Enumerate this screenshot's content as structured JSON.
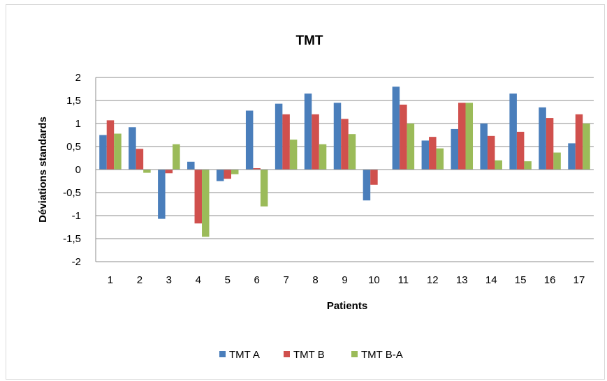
{
  "chart_data": {
    "type": "bar",
    "title": "TMT",
    "xlabel": "Patients",
    "ylabel": "Déviations standards",
    "ylim": [
      -2,
      2
    ],
    "yticks": [
      "2",
      "1,5",
      "1",
      "0,5",
      "0",
      "-0,5",
      "-1",
      "-1,5",
      "-2"
    ],
    "categories": [
      "1",
      "2",
      "3",
      "4",
      "5",
      "6",
      "7",
      "8",
      "9",
      "10",
      "11",
      "12",
      "13",
      "14",
      "15",
      "16",
      "17"
    ],
    "grid": true,
    "legend_position": "bottom",
    "series": [
      {
        "name": "TMT A",
        "color": "#4a7ebb",
        "values": [
          0.75,
          0.92,
          -1.07,
          0.17,
          -0.25,
          1.28,
          1.43,
          1.65,
          1.45,
          -0.67,
          1.8,
          0.63,
          0.88,
          1.0,
          1.65,
          1.35,
          0.57
        ]
      },
      {
        "name": "TMT B",
        "color": "#d0504d",
        "values": [
          1.07,
          0.45,
          -0.08,
          -1.17,
          -0.2,
          0.03,
          1.2,
          1.2,
          1.1,
          -0.33,
          1.41,
          0.71,
          1.45,
          0.73,
          0.82,
          1.12,
          1.2
        ]
      },
      {
        "name": "TMT B-A",
        "color": "#9bbb59",
        "values": [
          0.78,
          -0.07,
          0.55,
          -1.46,
          -0.1,
          -0.8,
          0.65,
          0.55,
          0.77,
          0.0,
          1.0,
          0.46,
          1.45,
          0.2,
          0.18,
          0.37,
          1.0
        ]
      }
    ]
  }
}
